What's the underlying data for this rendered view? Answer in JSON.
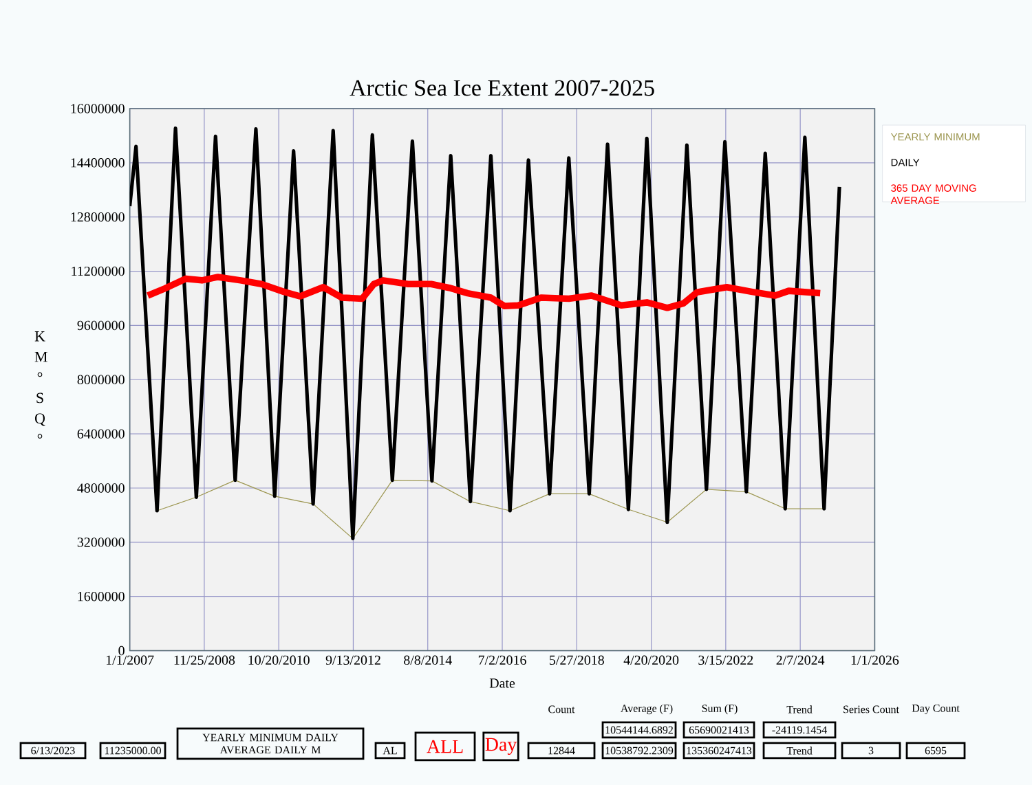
{
  "chart_data": {
    "type": "line",
    "title": "Arctic Sea Ice Extent 2007-2025",
    "xlabel": "Date",
    "ylabel": "K M ° S Q °",
    "xlim": [
      "2007-01-01",
      "2026-01-01"
    ],
    "xticks": [
      {
        "value": "2007-01-01",
        "label": "1/1/2007"
      },
      {
        "value": "2008-11-25",
        "label": "11/25/2008"
      },
      {
        "value": "2010-10-20",
        "label": "10/20/2010"
      },
      {
        "value": "2012-09-13",
        "label": "9/13/2012"
      },
      {
        "value": "2014-08-08",
        "label": "8/8/2014"
      },
      {
        "value": "2016-07-02",
        "label": "7/2/2016"
      },
      {
        "value": "2018-05-27",
        "label": "5/27/2018"
      },
      {
        "value": "2020-04-20",
        "label": "4/20/2020"
      },
      {
        "value": "2022-03-15",
        "label": "3/15/2022"
      },
      {
        "value": "2024-02-07",
        "label": "2/7/2024"
      },
      {
        "value": "2026-01-01",
        "label": "1/1/2026"
      }
    ],
    "ylim": [
      0,
      16000000
    ],
    "yticks": [
      0,
      1600000,
      3200000,
      4800000,
      6400000,
      8000000,
      9600000,
      11200000,
      12800000,
      14400000,
      16000000
    ],
    "grid": true,
    "legend": "right",
    "marker": "none",
    "line_style": "solid",
    "series": [
      {
        "name": "YEARLY MINIMUM",
        "color": "#9c9650",
        "x": [
          "2007-09-12",
          "2008-09-12",
          "2009-09-09",
          "2010-09-12",
          "2011-09-05",
          "2012-09-09",
          "2013-09-12",
          "2014-09-16",
          "2015-09-09",
          "2016-09-12",
          "2017-09-16",
          "2018-09-20",
          "2019-09-20",
          "2020-09-16",
          "2021-09-16",
          "2022-09-23",
          "2023-09-20",
          "2024-09-16"
        ],
        "values": [
          4130000,
          4530000,
          5030000,
          4560000,
          4330000,
          3310000,
          5030000,
          5010000,
          4400000,
          4130000,
          4630000,
          4630000,
          4170000,
          3790000,
          4760000,
          4690000,
          4190000,
          4190000
        ]
      },
      {
        "name": "DAILY",
        "color": "#000000",
        "x": [
          "2007-01-01",
          "2007-02-28",
          "2007-09-12",
          "2008-03-02",
          "2008-09-12",
          "2009-03-10",
          "2009-09-09",
          "2010-03-21",
          "2010-09-12",
          "2011-03-07",
          "2011-09-05",
          "2012-03-10",
          "2012-09-09",
          "2013-03-10",
          "2013-09-12",
          "2014-03-18",
          "2014-09-16",
          "2015-03-10",
          "2015-09-09",
          "2016-03-18",
          "2016-09-12",
          "2017-03-03",
          "2017-09-16",
          "2018-03-14",
          "2018-09-20",
          "2019-03-10",
          "2019-09-20",
          "2020-03-10",
          "2020-09-16",
          "2021-03-18",
          "2021-09-16",
          "2022-03-07",
          "2022-09-23",
          "2023-03-18",
          "2023-09-20",
          "2024-03-21",
          "2024-09-16",
          "2025-02-06"
        ],
        "values": [
          13120000,
          14880000,
          4130000,
          15420000,
          4530000,
          15180000,
          5030000,
          15400000,
          4560000,
          14750000,
          4330000,
          15350000,
          3310000,
          15220000,
          5030000,
          15040000,
          5010000,
          14610000,
          4400000,
          14610000,
          4130000,
          14480000,
          4630000,
          14540000,
          4630000,
          14950000,
          4170000,
          15120000,
          3790000,
          14920000,
          4760000,
          15020000,
          4690000,
          14680000,
          4190000,
          15150000,
          4190000,
          13690000
        ]
      },
      {
        "name": "365 DAY MOVING AVERAGE",
        "color": "#ff0000",
        "x": [
          "2007-06-18",
          "2007-11-25",
          "2008-06-07",
          "2008-11-03",
          "2009-04-02",
          "2009-10-30",
          "2010-05-12",
          "2010-12-09",
          "2011-05-08",
          "2011-12-09",
          "2012-05-30",
          "2012-12-05",
          "2013-03-24",
          "2013-06-18",
          "2014-02-06",
          "2014-09-09",
          "2015-02-24",
          "2015-08-15",
          "2016-03-18",
          "2016-07-24",
          "2016-11-28",
          "2017-06-28",
          "2018-03-14",
          "2018-10-12",
          "2019-07-16",
          "2020-03-10",
          "2020-09-16",
          "2021-02-14",
          "2021-06-21",
          "2022-03-25",
          "2022-11-18",
          "2023-06-18",
          "2023-10-23",
          "2024-08-11"
        ],
        "values": [
          10480000,
          10690000,
          10980000,
          10930000,
          11030000,
          10930000,
          10820000,
          10590000,
          10460000,
          10730000,
          10420000,
          10390000,
          10820000,
          10930000,
          10820000,
          10820000,
          10710000,
          10550000,
          10420000,
          10170000,
          10190000,
          10420000,
          10390000,
          10480000,
          10190000,
          10280000,
          10120000,
          10250000,
          10580000,
          10730000,
          10590000,
          10480000,
          10620000,
          10550000
        ]
      }
    ],
    "annotations": [
      "6/13/2023",
      "11235000.00",
      "YEARLY MINIMUM DAILY AVERAGE DAILY M",
      "AL",
      "ALL",
      "Day",
      "Count",
      "12844",
      "Average (F)",
      "10544144.6892",
      "10538792.2309",
      "Sum (F)",
      "65690021413",
      "135360247413",
      "Trend",
      "-24119.1454",
      "Trend",
      "Series Count",
      "3",
      "Day Count",
      "6595"
    ]
  }
}
